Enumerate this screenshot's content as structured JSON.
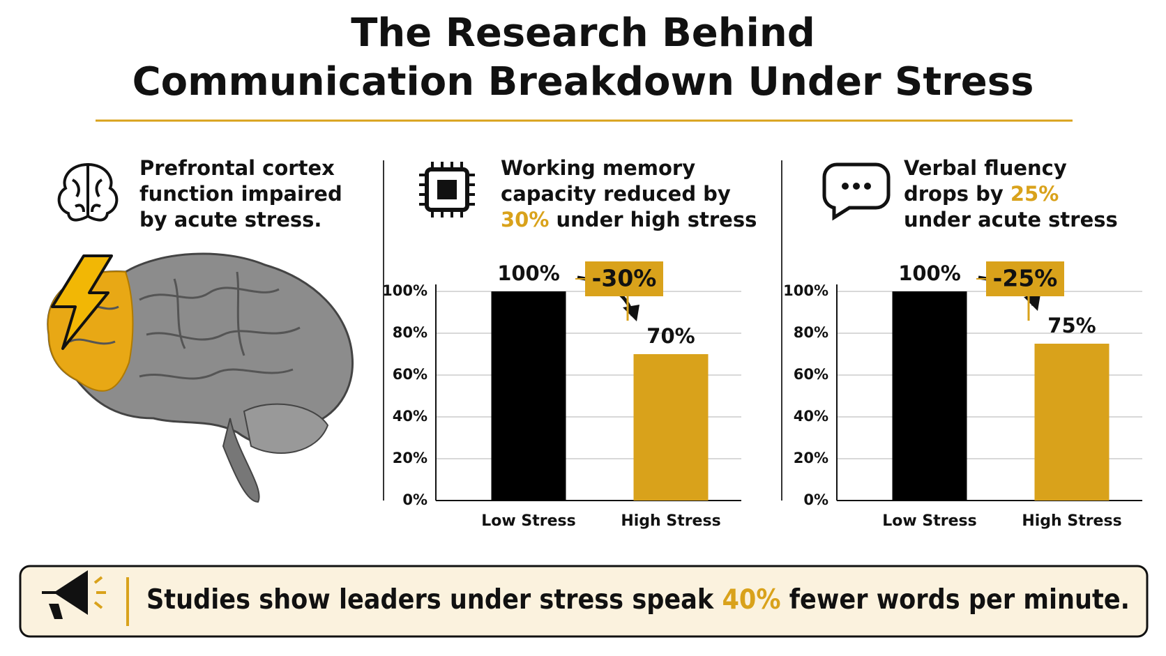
{
  "header": {
    "title": [
      "The Research Behind",
      "Communication Breakdown Under Stress"
    ]
  },
  "panels": [
    {
      "lines": [
        [
          "Prefrontal cortex"
        ],
        [
          "function impaired"
        ],
        [
          "by acute stress."
        ]
      ]
    },
    {
      "lines": [
        [
          "Working memory"
        ],
        [
          "capacity reduced by"
        ],
        [
          {
            "text": "30%",
            "color": "#d9a21b"
          },
          " under high stress"
        ]
      ]
    },
    {
      "lines": [
        [
          "Verbal fluency"
        ],
        [
          "drops by ",
          {
            "text": "25%",
            "color": "#d9a21b"
          }
        ],
        [
          "under acute stress"
        ]
      ]
    }
  ],
  "chart_data": [
    {
      "type": "bar",
      "categories": [
        "Low Stress",
        "High Stress"
      ],
      "values": [
        100,
        70
      ],
      "value_labels": [
        "100%",
        "70%"
      ],
      "colors": [
        "#000000",
        "#d9a21b"
      ],
      "ylim": [
        0,
        100
      ],
      "yticks": [
        {
          "value": 0,
          "label": "0%"
        },
        {
          "value": 20,
          "label": "20%"
        },
        {
          "value": 40,
          "label": "40%"
        },
        {
          "value": 60,
          "label": "60%"
        },
        {
          "value": 80,
          "label": "80%"
        },
        {
          "value": 100,
          "label": "100%"
        }
      ],
      "grid": true,
      "annotation": "-30%"
    },
    {
      "type": "bar",
      "categories": [
        "Low Stress",
        "High Stress"
      ],
      "values": [
        100,
        75
      ],
      "value_labels": [
        "100%",
        "75%"
      ],
      "colors": [
        "#000000",
        "#d9a21b"
      ],
      "ylim": [
        0,
        100
      ],
      "yticks": [
        {
          "value": 0,
          "label": "0%"
        },
        {
          "value": 20,
          "label": "20%"
        },
        {
          "value": 40,
          "label": "40%"
        },
        {
          "value": 60,
          "label": "60%"
        },
        {
          "value": 80,
          "label": "80%"
        },
        {
          "value": 100,
          "label": "100%"
        }
      ],
      "grid": true,
      "annotation": "-25%"
    }
  ],
  "footer": {
    "text": [
      "Studies show leaders under stress speak ",
      {
        "text": "40%",
        "color": "#d9a21b"
      },
      " fewer words per minute."
    ]
  }
}
